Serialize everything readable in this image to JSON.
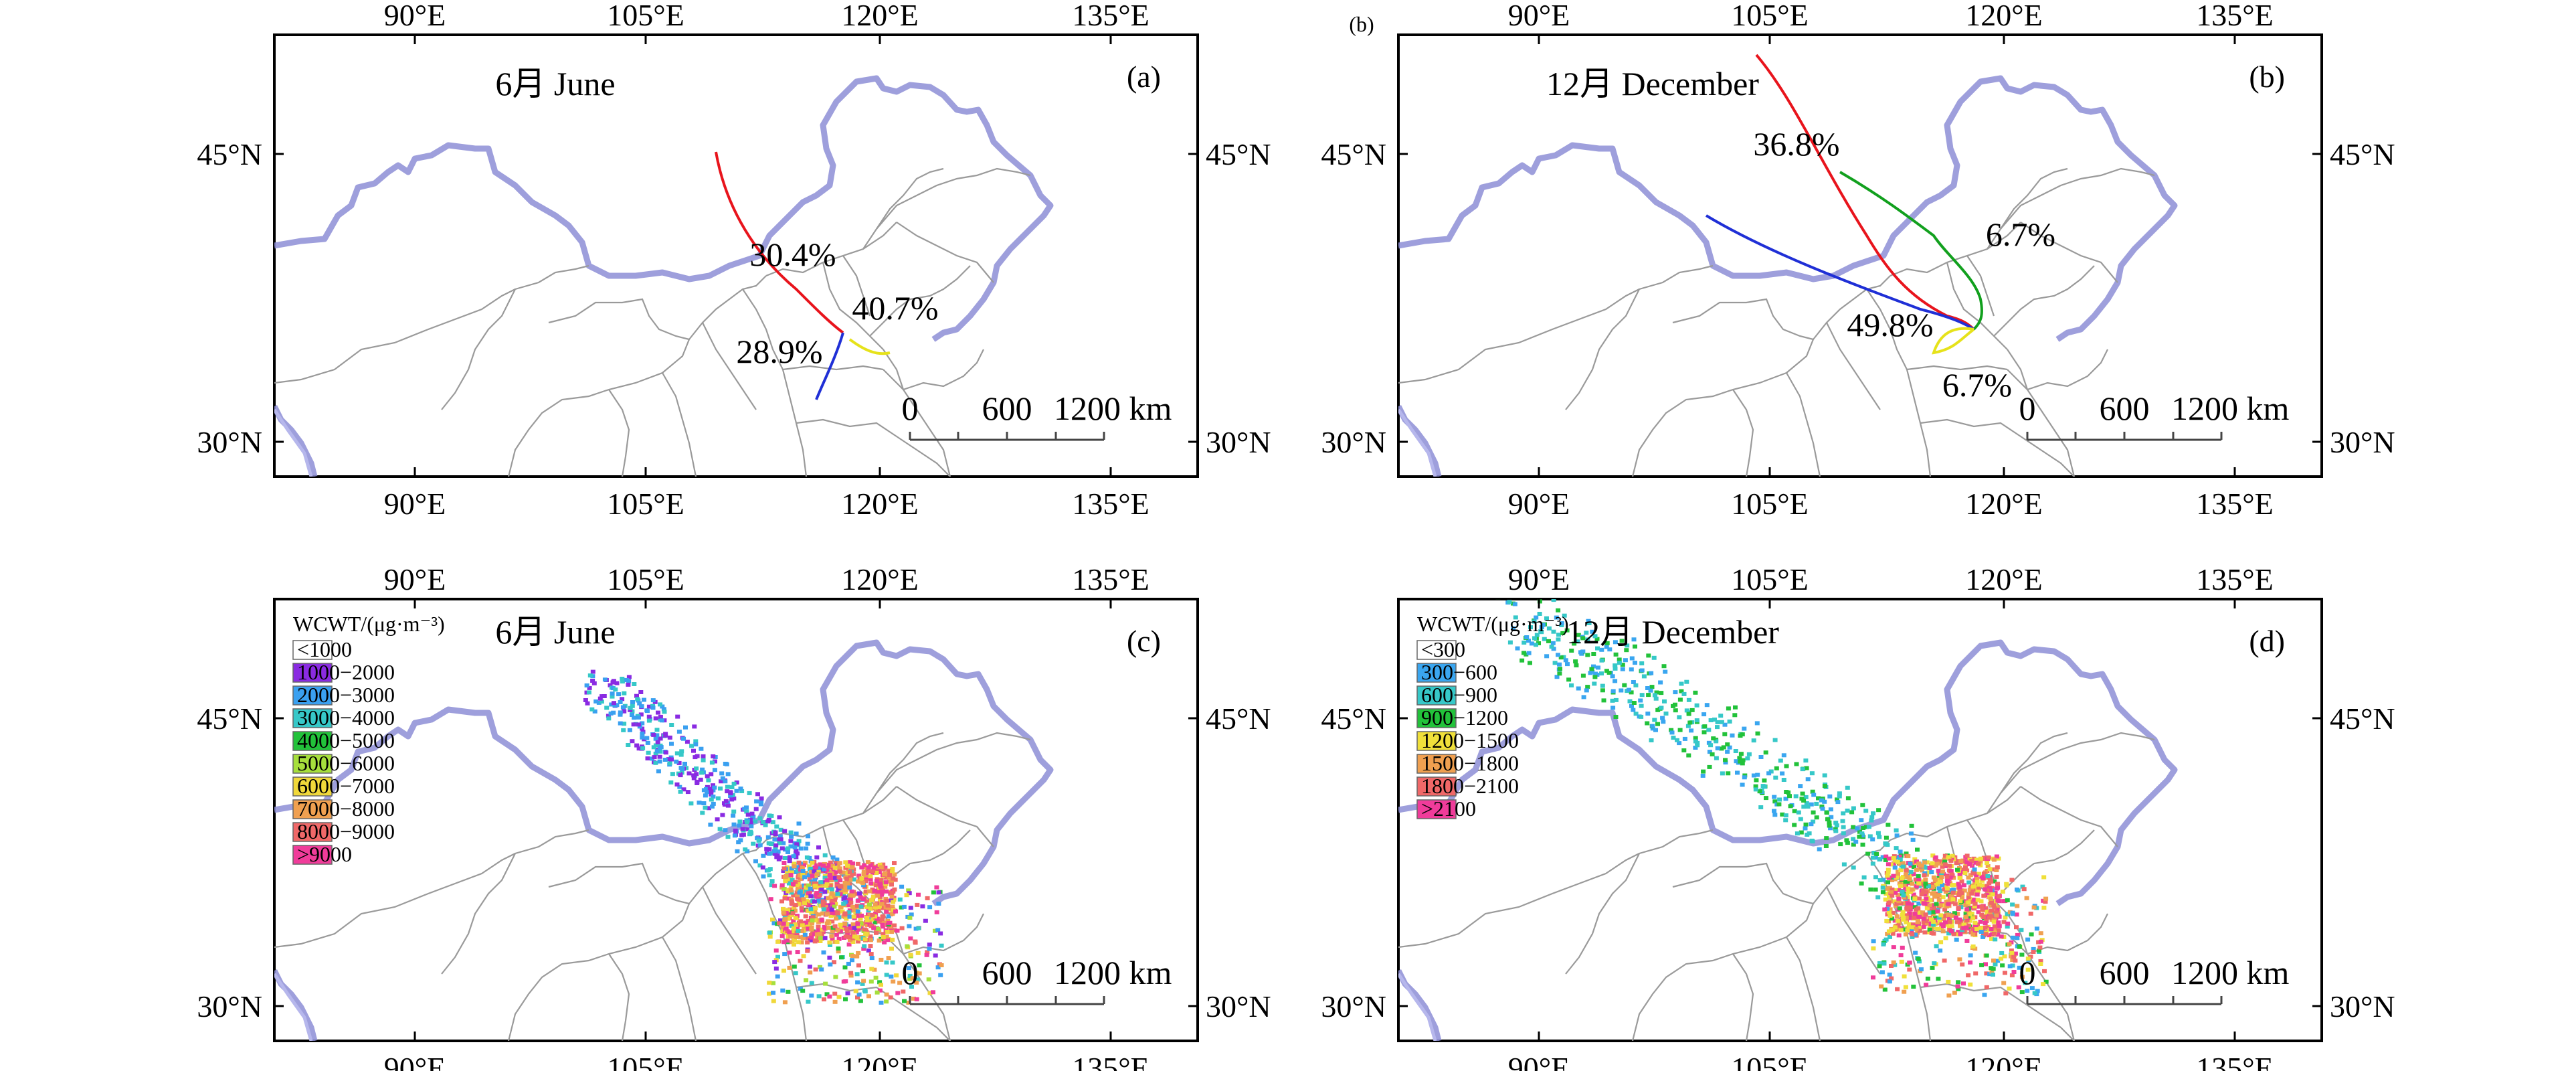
{
  "colors": {
    "red": "#e8141c",
    "green": "#12a01e",
    "blue": "#1f2fd6",
    "yellow": "#e6e21a",
    "border": "#8d8ed6",
    "province": "#9a9a9a"
  },
  "axis": {
    "lon_ticks": [
      "90°E",
      "105°E",
      "120°E",
      "135°E"
    ],
    "lat_ticks": [
      "45°N",
      "30°N"
    ]
  },
  "panels": [
    {
      "id": "a",
      "letter": "(a)",
      "month": "6月 June",
      "extra_mark": "",
      "scale": {
        "zero": "0",
        "mid": "600",
        "end": "1200 km"
      },
      "cluster_labels": [
        "30.4%",
        "40.7%",
        "28.9%"
      ],
      "trajectories": [
        {
          "color": "red",
          "share": "30.4%"
        },
        {
          "color": "yellow",
          "share": "40.7%"
        },
        {
          "color": "blue",
          "share": "28.9%"
        }
      ]
    },
    {
      "id": "b",
      "letter": "(b)",
      "month": "12月 December",
      "extra_mark": "(b)",
      "scale": {
        "zero": "0",
        "mid": "600",
        "end": "1200 km"
      },
      "cluster_labels": [
        "36.8%",
        "6.7%",
        "49.8%",
        "6.7%"
      ],
      "trajectories": [
        {
          "color": "red",
          "share": "36.8%"
        },
        {
          "color": "green",
          "share": "6.7%"
        },
        {
          "color": "blue",
          "share": "49.8%"
        },
        {
          "color": "yellow",
          "share": "6.7%"
        }
      ]
    },
    {
      "id": "c",
      "letter": "(c)",
      "month": "6月 June",
      "scale": {
        "zero": "0",
        "mid": "600",
        "end": "1200 km"
      },
      "legend_title": "WCWT/(μg·m⁻³)",
      "legend": [
        {
          "label": "<1000",
          "color": "#ffffff"
        },
        {
          "label": "1000−2000",
          "color": "#8a2be2"
        },
        {
          "label": "2000−3000",
          "color": "#3aa0f0"
        },
        {
          "label": "3000−4000",
          "color": "#36c8c8"
        },
        {
          "label": "4000−5000",
          "color": "#22c23a"
        },
        {
          "label": "5000−6000",
          "color": "#a6df3c"
        },
        {
          "label": "6000−7000",
          "color": "#f0d83a"
        },
        {
          "label": "7000−8000",
          "color": "#f0a050"
        },
        {
          "label": "8000−9000",
          "color": "#f06868"
        },
        {
          "label": ">9000",
          "color": "#f03c9a"
        }
      ]
    },
    {
      "id": "d",
      "letter": "(d)",
      "month": "12月 December",
      "scale": {
        "zero": "0",
        "mid": "600",
        "end": "1200 km"
      },
      "legend_title": "WCWT/(μg·m⁻³)",
      "legend": [
        {
          "label": "<300",
          "color": "#ffffff"
        },
        {
          "label": "300−600",
          "color": "#3aa6f0"
        },
        {
          "label": "600−900",
          "color": "#36c8c8"
        },
        {
          "label": "900−1200",
          "color": "#22c23a"
        },
        {
          "label": "1200−1500",
          "color": "#f0e03a"
        },
        {
          "label": "1500−1800",
          "color": "#f0a050"
        },
        {
          "label": "1800−2100",
          "color": "#f06868"
        },
        {
          "label": ">2100",
          "color": "#f03c9a"
        }
      ]
    }
  ]
}
